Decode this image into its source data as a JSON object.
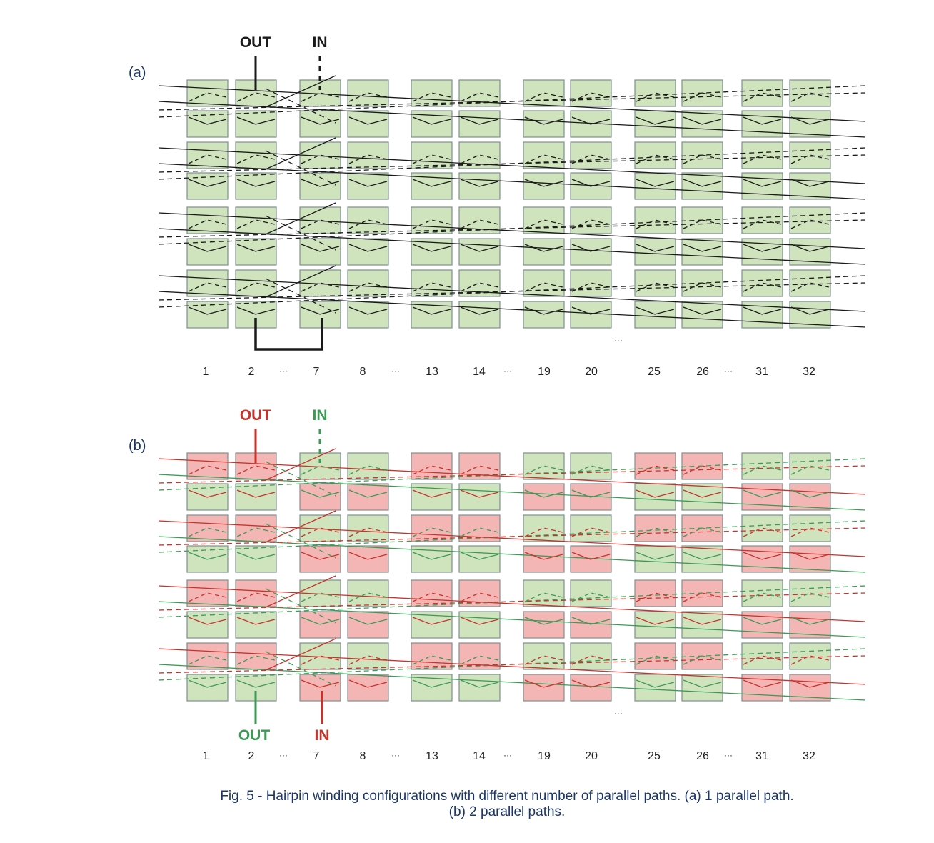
{
  "panels": [
    {
      "label": "(a)",
      "top_terminals": [
        "OUT",
        "IN"
      ],
      "bottom_terminals": [],
      "slot_labels": [
        "1",
        "2",
        "···",
        "7",
        "8",
        "···",
        "13",
        "14",
        "···",
        "19",
        "20",
        "25",
        "26",
        "···",
        "31",
        "32"
      ],
      "ellipsis": "···"
    },
    {
      "label": "(b)",
      "top_terminals": [
        "OUT",
        "IN"
      ],
      "bottom_terminals": [
        "OUT",
        "IN"
      ],
      "slot_labels": [
        "1",
        "2",
        "···",
        "7",
        "8",
        "···",
        "13",
        "14",
        "···",
        "19",
        "20",
        "25",
        "26",
        "···",
        "31",
        "32"
      ],
      "ellipsis": "···"
    }
  ],
  "caption": {
    "line1": "Fig. 5 - Hairpin winding configurations with different number of parallel paths. (a) 1 parallel path.",
    "line2": "(b) 2 parallel paths."
  },
  "colors": {
    "green_fill": "#cfe3bd",
    "red_fill": "#f4b6b5",
    "box_stroke": "#7f8f8f",
    "black": "#1a1a1a",
    "red": "#c8322b",
    "green": "#3d9a55",
    "label_blue": "#1c3668"
  }
}
